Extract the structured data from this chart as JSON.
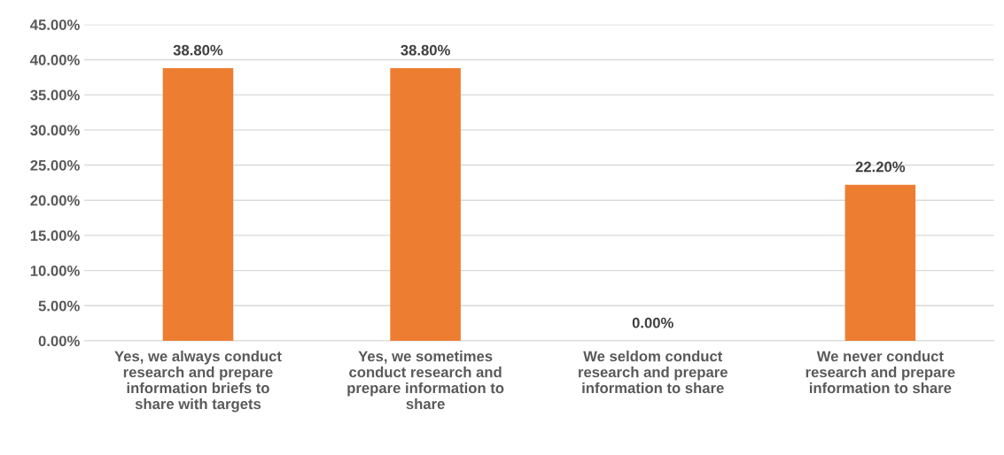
{
  "chart_data": {
    "type": "bar",
    "categories": [
      "Yes, we always conduct\nresearch and prepare\ninformation briefs to\nshare with targets",
      "Yes, we sometimes\nconduct research and\nprepare information to\nshare",
      "We seldom conduct\nresearch and prepare\ninformation to share",
      "We never conduct\nresearch and prepare\ninformation to share"
    ],
    "values": [
      38.8,
      38.8,
      0,
      22.2
    ],
    "value_labels": [
      "38.80%",
      "38.80%",
      "0.00%",
      "22.20%"
    ],
    "color": "#ed7d31",
    "ylim": [
      0,
      45
    ],
    "yticks": [
      {
        "value": 0,
        "label": "0.00%"
      },
      {
        "value": 5,
        "label": "5.00%"
      },
      {
        "value": 10,
        "label": "10.00%"
      },
      {
        "value": 15,
        "label": "15.00%"
      },
      {
        "value": 20,
        "label": "20.00%"
      },
      {
        "value": 25,
        "label": "25.00%"
      },
      {
        "value": 30,
        "label": "30.00%"
      },
      {
        "value": 35,
        "label": "35.00%"
      },
      {
        "value": 40,
        "label": "40.00%"
      },
      {
        "value": 45,
        "label": "45.00%"
      }
    ],
    "grid": "y"
  }
}
